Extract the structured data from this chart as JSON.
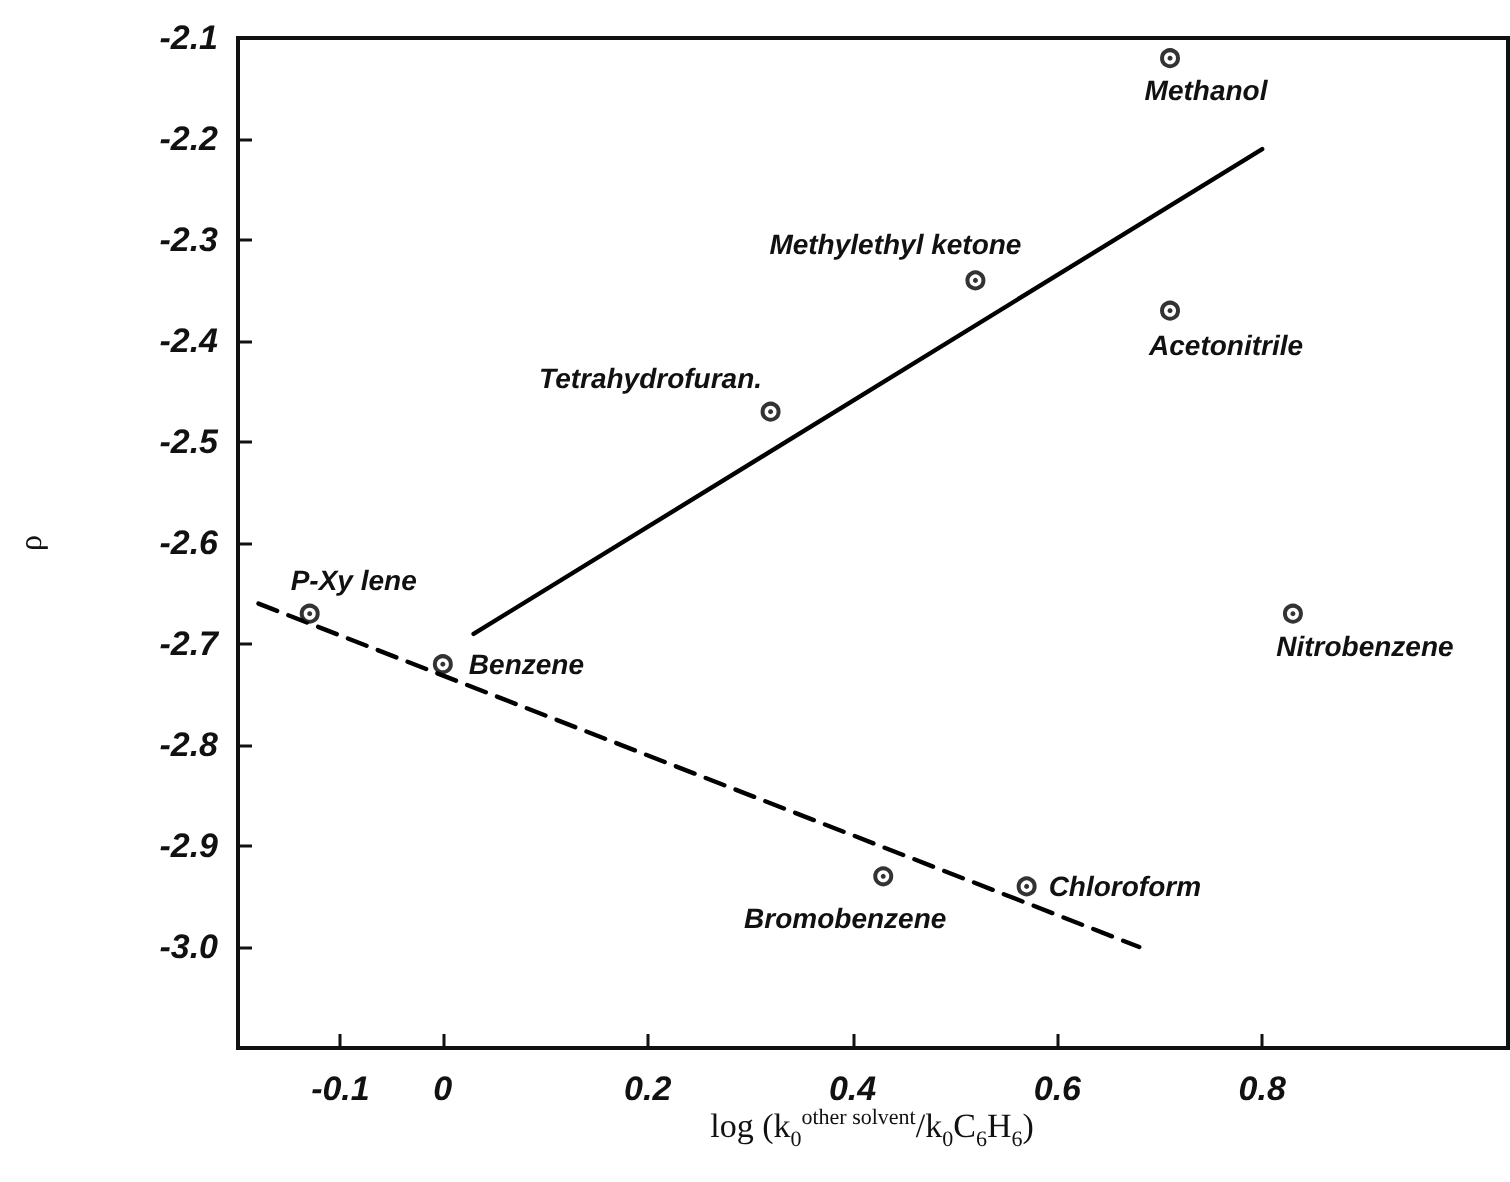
{
  "chart_data": {
    "type": "scatter",
    "xlabel": "log (k$_{0}$$^{other solvent}$/k$_{0}$C$_{6}$H$_{6}$)",
    "ylabel": "ρ",
    "xlim": [
      -0.2,
      1.04
    ],
    "ylim": [
      -3.1,
      -2.1
    ],
    "xticks": [
      -0.1,
      0,
      0.2,
      0.4,
      0.6,
      0.8
    ],
    "yticks": [
      -2.1,
      -2.2,
      -2.3,
      -2.4,
      -2.5,
      -2.6,
      -2.7,
      -2.8,
      -2.9,
      {
        "value": -3,
        "label": "-3.0"
      }
    ],
    "marker": "circle",
    "series": [
      {
        "color": "#000000",
        "x": [
          0.71,
          0.52,
          0.71,
          0.32,
          -0.13,
          0,
          0.83,
          0.43,
          0.57
        ],
        "values": [
          -2.12,
          -2.34,
          -2.37,
          -2.47,
          -2.67,
          -2.72,
          -2.67,
          -2.93,
          -2.94
        ]
      },
      {
        "type": "line",
        "color": "#000000",
        "marker": "none",
        "line_style": "solid",
        "x": [
          0.03,
          0.8
        ],
        "values": [
          -2.69,
          -2.21
        ]
      },
      {
        "type": "line",
        "color": "#000000",
        "marker": "none",
        "line_style": "dashed",
        "x": [
          -0.18,
          0.68
        ],
        "values": [
          -2.66,
          -3.0
        ]
      }
    ],
    "annotations": [
      {
        "text": "Methanol",
        "x": 0.71,
        "y": -2.12
      },
      {
        "text": "Methylethyl ketone",
        "x": 0.52,
        "y": -2.34
      },
      {
        "text": "Acetonitrile",
        "x": 0.71,
        "y": -2.37
      },
      {
        "text": "Tetrahydrofuran.",
        "x": 0.32,
        "y": -2.47
      },
      {
        "text": "P-Xy lene",
        "x": -0.13,
        "y": -2.67
      },
      {
        "text": "Benzene",
        "x": 0,
        "y": -2.72
      },
      {
        "text": "Nitrobenzene",
        "x": 0.83,
        "y": -2.67
      },
      {
        "text": "Bromobenzene",
        "x": 0.43,
        "y": -2.93
      },
      {
        "text": "Chloroform",
        "x": 0.57,
        "y": -2.94
      }
    ]
  }
}
